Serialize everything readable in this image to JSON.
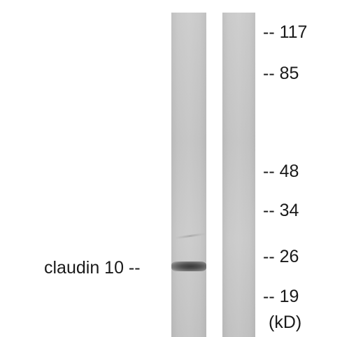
{
  "band_label": "claudin 10 --",
  "markers": [
    {
      "label": "-- 117",
      "kd": 117
    },
    {
      "label": "-- 85",
      "kd": 85
    },
    {
      "label": "-- 48",
      "kd": 48
    },
    {
      "label": "-- 34",
      "kd": 34
    },
    {
      "label": "-- 26",
      "kd": 26
    },
    {
      "label": "-- 19",
      "kd": 19
    }
  ],
  "unit": "(kD)",
  "colors": {
    "background": "#ffffff",
    "lane": "#c8c8c8",
    "band": "#3a3a3a",
    "text": "#1a1a1a"
  }
}
